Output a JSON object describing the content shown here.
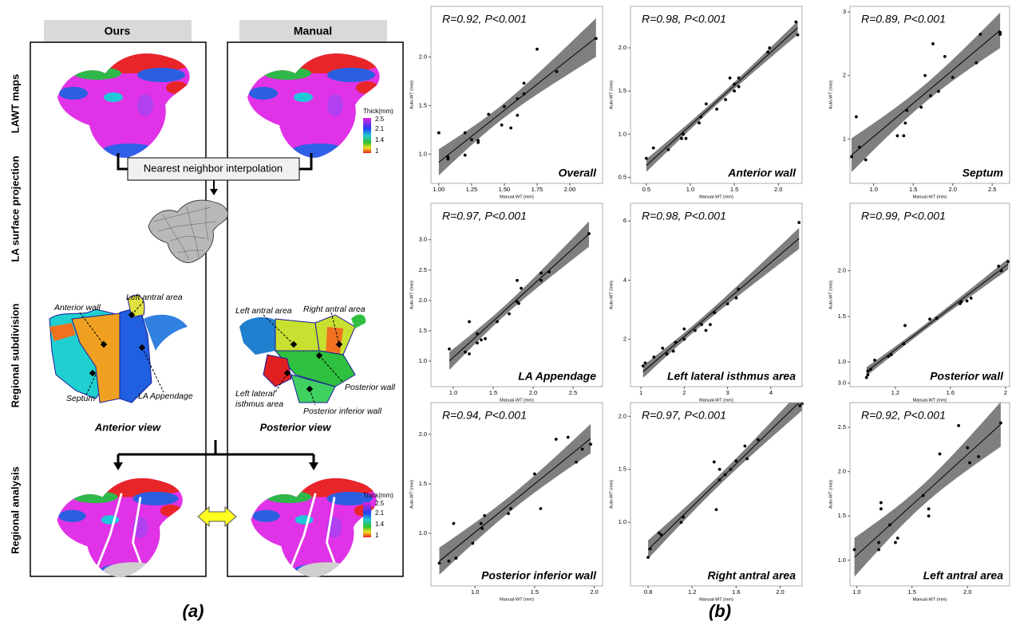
{
  "panel_a": {
    "label": "(a)",
    "columns": [
      "Ours",
      "Manual"
    ],
    "rows": [
      "LAWT maps",
      "LA surface projection",
      "Regional subdivision",
      "Regional analysis"
    ],
    "legend": {
      "title": "Thick(mm)",
      "ticks": [
        "2.5",
        "2.1",
        "1.4",
        "1"
      ]
    },
    "method": "Nearest neighbor interpolation",
    "anterior": {
      "view": "Anterior view",
      "regions": [
        "Anterior wall",
        "Left antral area",
        "Septum",
        "LA Appendage"
      ]
    },
    "posterior": {
      "view": "Posterior view",
      "regions": [
        "Left antral area",
        "Right antral area",
        [
          "Left lateral",
          "isthmus area"
        ],
        "Posterior wall",
        "Posterior inferior wall"
      ]
    }
  },
  "panel_b": {
    "label": "(b)"
  },
  "chart_data": [
    {
      "type": "scatter",
      "title": "Overall",
      "annotation": "R=0.92, P<0.001",
      "xlabel": "Manual-WT (mm)",
      "ylabel": "Auto-WT (mm)",
      "color": "#000000",
      "band_color": "#7f7f7f",
      "grid": false,
      "x": [
        1.0,
        1.07,
        1.07,
        1.2,
        1.2,
        1.25,
        1.3,
        1.3,
        1.38,
        1.48,
        1.5,
        1.55,
        1.6,
        1.6,
        1.65,
        1.65,
        1.75,
        1.9,
        2.2
      ],
      "values": [
        1.22,
        0.97,
        0.95,
        1.22,
        0.99,
        1.15,
        1.12,
        1.14,
        1.41,
        1.3,
        1.49,
        1.27,
        1.4,
        1.57,
        1.62,
        1.73,
        2.08,
        1.85,
        2.19
      ],
      "xlim": [
        0.94,
        2.25
      ],
      "ylim": [
        0.7,
        2.52
      ],
      "xticks": [
        {
          "value": 1,
          "label": "1.00"
        },
        1.25,
        {
          "value": 1.5,
          "label": "1.50"
        },
        1.75,
        {
          "value": 2,
          "label": "2.00"
        }
      ],
      "yticks": [
        {
          "value": 1,
          "label": "1.0"
        },
        1.5,
        {
          "value": 2,
          "label": "2.0"
        }
      ]
    },
    {
      "type": "scatter",
      "title": "Anterior wall",
      "annotation": "R=0.98, P<0.001",
      "xlabel": "Manual-WT (mm)",
      "ylabel": "Auto-WT (mm)",
      "color": "#000000",
      "band_color": "#7f7f7f",
      "grid": false,
      "x": [
        0.5,
        0.58,
        0.75,
        0.9,
        0.92,
        0.95,
        1.1,
        1.12,
        1.18,
        1.3,
        1.4,
        1.45,
        1.5,
        1.5,
        1.55,
        1.55,
        1.88,
        1.9,
        2.2,
        2.22
      ],
      "values": [
        0.72,
        0.84,
        0.82,
        0.95,
        1.0,
        0.95,
        1.13,
        1.2,
        1.35,
        1.29,
        1.4,
        1.65,
        1.5,
        1.58,
        1.55,
        1.65,
        1.95,
        2.0,
        2.3,
        2.15
      ],
      "xlim": [
        0.32,
        2.27
      ],
      "ylim": [
        0.43,
        2.48
      ],
      "xticks": [
        0.5,
        {
          "value": 1,
          "label": "1.0"
        },
        1.5,
        {
          "value": 2,
          "label": "2.0"
        }
      ],
      "yticks": [
        0.5,
        {
          "value": 1,
          "label": "1.0"
        },
        1.5,
        {
          "value": 2,
          "label": "2.0"
        }
      ]
    },
    {
      "type": "scatter",
      "title": "Septum",
      "annotation": "R=0.89, P<0.001",
      "xlabel": "Manual-WT (mm)",
      "ylabel": "Auto-WT (mm)",
      "color": "#000000",
      "band_color": "#7f7f7f",
      "grid": false,
      "x": [
        0.72,
        0.78,
        0.82,
        0.9,
        1.3,
        1.38,
        1.4,
        1.42,
        1.6,
        1.65,
        1.72,
        1.75,
        1.82,
        1.9,
        2.0,
        2.3,
        2.35,
        2.6,
        2.6
      ],
      "values": [
        0.72,
        1.35,
        0.87,
        0.67,
        1.05,
        1.05,
        1.25,
        1.45,
        1.5,
        2.0,
        1.68,
        2.5,
        1.75,
        2.3,
        1.97,
        2.2,
        2.65,
        2.65,
        2.68
      ],
      "xlim": [
        0.7,
        2.72
      ],
      "ylim": [
        0.3,
        3.09
      ],
      "xticks": [
        {
          "value": 1,
          "label": "1.0"
        },
        1.5,
        {
          "value": 2,
          "label": "2.0"
        },
        2.5
      ],
      "yticks": [
        1,
        2,
        3
      ]
    },
    {
      "type": "scatter",
      "title": "LA Appendage",
      "annotation": "R=0.97, P<0.001",
      "xlabel": "Manual-WT (mm)",
      "ylabel": "Auto-WT (mm)",
      "color": "#000000",
      "band_color": "#7f7f7f",
      "grid": false,
      "x": [
        0.95,
        1.15,
        1.2,
        1.2,
        1.3,
        1.3,
        1.35,
        1.4,
        1.55,
        1.7,
        1.8,
        1.8,
        1.82,
        1.85,
        2.1,
        2.1,
        2.2,
        2.7
      ],
      "values": [
        1.2,
        1.15,
        1.65,
        1.12,
        1.3,
        1.45,
        1.35,
        1.37,
        1.65,
        1.78,
        2.33,
        1.98,
        1.95,
        2.2,
        2.33,
        2.45,
        2.47,
        3.1
      ],
      "xlim": [
        0.72,
        2.87
      ],
      "ylim": [
        0.58,
        3.6
      ],
      "xticks": [
        {
          "value": 1,
          "label": "1.0"
        },
        1.5,
        {
          "value": 2,
          "label": "2.0"
        },
        2.5
      ],
      "yticks": [
        {
          "value": 1,
          "label": "1.0"
        },
        1.5,
        {
          "value": 2,
          "label": "2.0"
        },
        2.5,
        {
          "value": 3,
          "label": "3.0"
        }
      ]
    },
    {
      "type": "scatter",
      "title": "Left lateral isthmus area",
      "annotation": "R=0.98, P<0.001",
      "xlabel": "Manual-WT (mm)",
      "ylabel": "Auto-WT (mm)",
      "color": "#000000",
      "band_color": "#7f7f7f",
      "grid": false,
      "x": [
        1.05,
        1.1,
        1.3,
        1.5,
        1.6,
        1.75,
        1.8,
        2.0,
        2.0,
        2.25,
        2.4,
        2.5,
        2.6,
        2.7,
        3.0,
        3.2,
        3.25,
        4.65
      ],
      "values": [
        1.1,
        1.2,
        1.4,
        1.7,
        1.5,
        1.6,
        1.9,
        2.0,
        2.35,
        2.3,
        2.5,
        2.3,
        2.5,
        2.9,
        3.2,
        3.4,
        3.7,
        5.95
      ],
      "xlim": [
        0.76,
        4.72
      ],
      "ylim": [
        0.4,
        6.6
      ],
      "xticks": [
        1,
        2,
        3,
        4
      ],
      "yticks": [
        2,
        4,
        6
      ]
    },
    {
      "type": "scatter",
      "title": "Posterior wall",
      "annotation": "R=0.99, P<0.001",
      "xlabel": "Manual-WT (mm)",
      "ylabel": "Auto-WT (mm)",
      "color": "#000000",
      "band_color": "#7f7f7f",
      "grid": false,
      "x": [
        0.99,
        1.0,
        1.0,
        1.02,
        1.05,
        1.15,
        1.17,
        1.26,
        1.27,
        1.45,
        1.5,
        1.67,
        1.68,
        1.72,
        1.75,
        1.95,
        1.97,
        2.02
      ],
      "values": [
        0.83,
        0.86,
        0.9,
        0.92,
        1.02,
        1.06,
        1.08,
        1.2,
        1.4,
        1.47,
        1.48,
        1.64,
        1.66,
        1.67,
        1.7,
        2.05,
        2.0,
        2.1
      ],
      "xlim": [
        0.87,
        2.03
      ],
      "ylim": [
        0.73,
        2.74
      ],
      "xticks": [
        1.2,
        1.6,
        2
      ],
      "yticks": [
        {
          "value": 1,
          "label": "1.0"
        },
        1.5,
        {
          "value": 2,
          "label": "2.0"
        }
      ]
    },
    {
      "type": "scatter",
      "title": "Posterior inferior wall",
      "annotation": "R=0.94, P<0.001",
      "xlabel": "Manual-WT (mm)",
      "ylabel": "Auto-WT (mm)",
      "color": "#000000",
      "band_color": "#7f7f7f",
      "grid": false,
      "x": [
        0.7,
        0.78,
        0.82,
        0.84,
        0.98,
        1.05,
        1.06,
        1.08,
        1.28,
        1.3,
        1.5,
        1.55,
        1.68,
        1.78,
        1.85,
        1.9,
        1.97
      ],
      "values": [
        0.7,
        0.72,
        1.1,
        0.75,
        0.9,
        1.1,
        1.05,
        1.18,
        1.2,
        1.25,
        1.6,
        1.25,
        1.95,
        1.97,
        1.72,
        1.85,
        1.9
      ],
      "xlim": [
        0.63,
        2.07
      ],
      "ylim": [
        0.47,
        2.32
      ],
      "xticks": [
        {
          "value": 1,
          "label": "1.0"
        },
        1.5,
        {
          "value": 2,
          "label": "2.0"
        }
      ],
      "yticks": [
        {
          "value": 1,
          "label": "1.0"
        },
        1.5,
        {
          "value": 2,
          "label": "2.0"
        }
      ]
    },
    {
      "type": "scatter",
      "title": "Right antral area",
      "annotation": "R=0.97, P<0.001",
      "xlabel": "Manual-WT (mm)",
      "ylabel": "Auto-WT (mm)",
      "color": "#000000",
      "band_color": "#7f7f7f",
      "grid": false,
      "x": [
        0.8,
        0.82,
        0.9,
        0.92,
        1.1,
        1.12,
        1.4,
        1.42,
        1.45,
        1.45,
        1.5,
        1.55,
        1.6,
        1.68,
        1.7,
        1.8,
        2.18,
        2.2
      ],
      "values": [
        0.67,
        0.75,
        0.9,
        0.88,
        1.0,
        1.05,
        1.57,
        1.12,
        1.5,
        1.4,
        1.45,
        1.5,
        1.58,
        1.72,
        1.6,
        1.78,
        2.1,
        2.12
      ],
      "xlim": [
        0.64,
        2.2
      ],
      "ylim": [
        0.4,
        2.13
      ],
      "xticks": [
        0.8,
        1.2,
        1.6,
        {
          "value": 2,
          "label": "2.0"
        }
      ],
      "yticks": [
        {
          "value": 1,
          "label": "1.0"
        },
        1.5,
        {
          "value": 2,
          "label": "2.0"
        }
      ]
    },
    {
      "type": "scatter",
      "title": "Left antral area",
      "annotation": "R=0.92, P<0.001",
      "xlabel": "Manual-WT (mm)",
      "ylabel": "Auto-WT (mm)",
      "color": "#000000",
      "band_color": "#7f7f7f",
      "grid": false,
      "x": [
        0.98,
        1.2,
        1.2,
        1.22,
        1.22,
        1.3,
        1.35,
        1.37,
        1.6,
        1.65,
        1.65,
        1.75,
        1.92,
        2.0,
        2.02,
        2.1,
        2.3
      ],
      "values": [
        1.12,
        1.2,
        1.12,
        1.65,
        1.58,
        1.4,
        1.2,
        1.25,
        1.73,
        1.58,
        1.5,
        2.2,
        2.52,
        2.27,
        2.1,
        2.17,
        2.55
      ],
      "xlim": [
        0.94,
        2.38
      ],
      "ylim": [
        0.71,
        2.78
      ],
      "xticks": [
        {
          "value": 1,
          "label": "1.0"
        },
        1.5,
        {
          "value": 2,
          "label": "2.0"
        }
      ],
      "yticks": [
        {
          "value": 1,
          "label": "1.0"
        },
        1.5,
        {
          "value": 2,
          "label": "2.0"
        },
        2.5,
        {
          "value": 3,
          "label": "3.0"
        }
      ]
    }
  ]
}
